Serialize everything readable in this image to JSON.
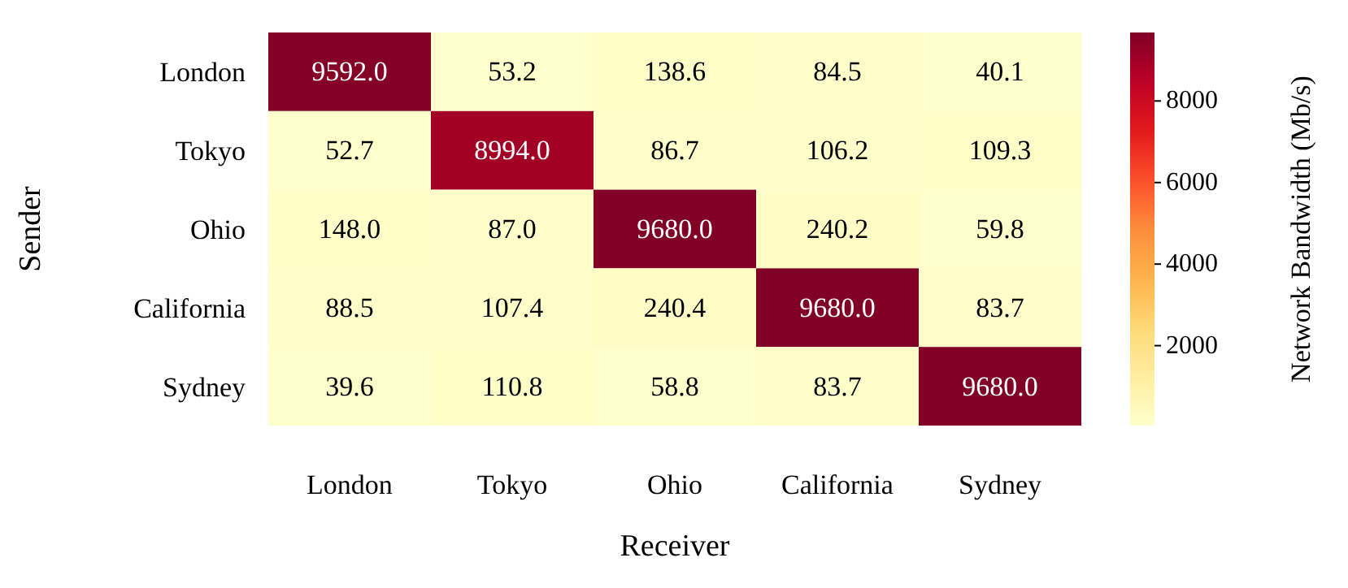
{
  "chart_data": {
    "type": "heatmap",
    "xlabel": "Receiver",
    "ylabel": "Sender",
    "clabel": "Network Bandwidth (Mb/s)",
    "categories": [
      "London",
      "Tokyo",
      "Ohio",
      "California",
      "Sydney"
    ],
    "y_categories": [
      "London",
      "Tokyo",
      "Ohio",
      "California",
      "Sydney"
    ],
    "cells": [
      [
        9592.0,
        53.2,
        138.6,
        84.5,
        40.1
      ],
      [
        52.7,
        8994.0,
        86.7,
        106.2,
        109.3
      ],
      [
        148.0,
        87.0,
        9680.0,
        240.2,
        59.8
      ],
      [
        88.5,
        107.4,
        240.4,
        9680.0,
        83.7
      ],
      [
        39.6,
        110.8,
        58.8,
        83.7,
        9680.0
      ]
    ],
    "cell_labels": [
      [
        "9592.0",
        "53.2",
        "138.6",
        "84.5",
        "40.1"
      ],
      [
        "52.7",
        "8994.0",
        "86.7",
        "106.2",
        "109.3"
      ],
      [
        "148.0",
        "87.0",
        "9680.0",
        "240.2",
        "59.8"
      ],
      [
        "88.5",
        "107.4",
        "240.4",
        "9680.0",
        "83.7"
      ],
      [
        "39.6",
        "110.8",
        "58.8",
        "83.7",
        "9680.0"
      ]
    ],
    "clim": [
      39.6,
      9680
    ],
    "cticks": [
      2000,
      4000,
      6000,
      8000
    ]
  }
}
